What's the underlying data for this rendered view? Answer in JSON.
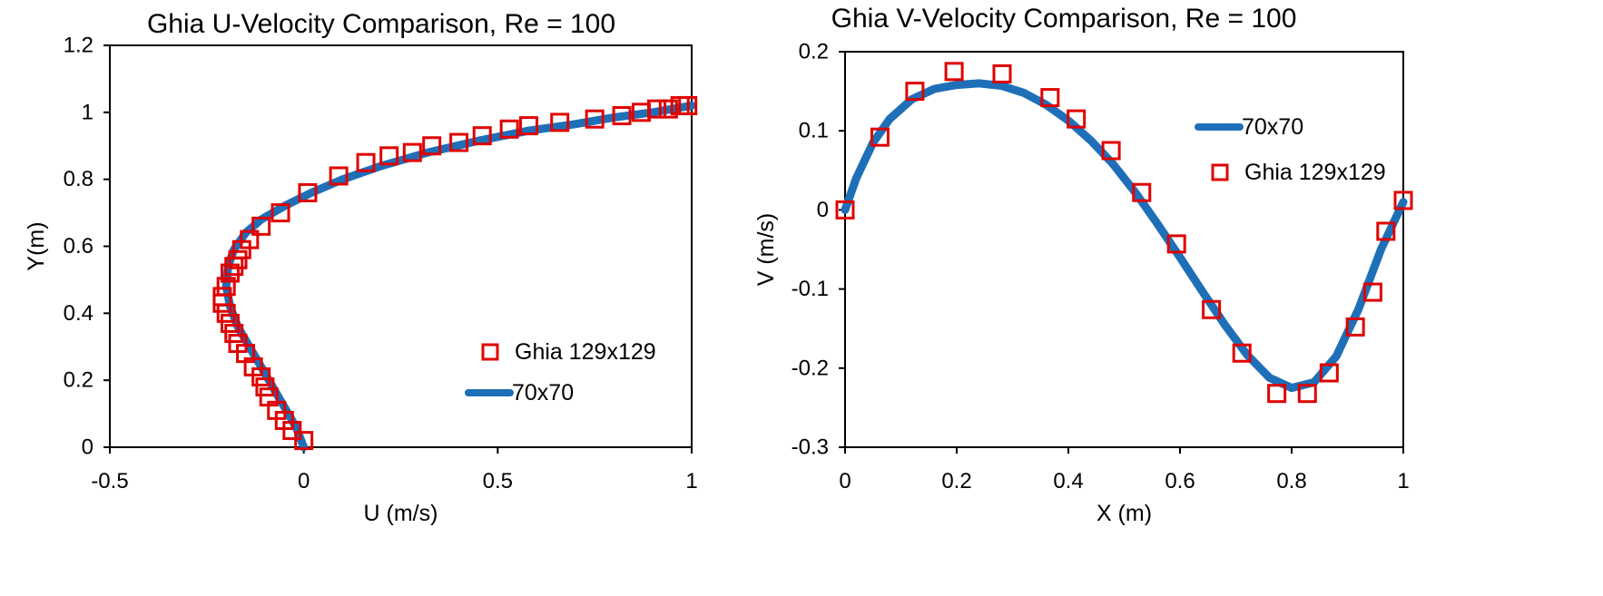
{
  "colors": {
    "simulation": "#1F6FB8",
    "ghia": "#E00000",
    "axis": "#000000"
  },
  "chart_data": [
    {
      "type": "line",
      "title": "Ghia U-Velocity Comparison, Re = 100",
      "xlabel": "U (m/s)",
      "ylabel": "Y(m)",
      "xlim": [
        -0.5,
        1
      ],
      "ylim": [
        0,
        1.2
      ],
      "xticks": [
        -0.5,
        0,
        0.5,
        1
      ],
      "xtick_labels": [
        "-0.5",
        "0",
        "0.5",
        "1"
      ],
      "yticks": [
        0,
        0.2,
        0.4,
        0.6,
        0.8,
        1,
        1.2
      ],
      "ytick_labels": [
        "0",
        "0.2",
        "0.4",
        "0.6",
        "0.8",
        "1",
        "1.2"
      ],
      "grid": false,
      "legend_position": "bottom-right",
      "legend_order": [
        "Ghia 129x129",
        "70x70"
      ],
      "series": [
        {
          "name": "70x70",
          "kind": "line",
          "x": [
            0.0,
            -0.02,
            -0.05,
            -0.08,
            -0.11,
            -0.14,
            -0.17,
            -0.19,
            -0.2,
            -0.195,
            -0.18,
            -0.15,
            -0.11,
            -0.05,
            0.02,
            0.1,
            0.2,
            0.32,
            0.45,
            0.58,
            0.7,
            0.8,
            0.9,
            1.0
          ],
          "y": [
            0.0,
            0.06,
            0.12,
            0.18,
            0.24,
            0.3,
            0.36,
            0.42,
            0.48,
            0.54,
            0.59,
            0.64,
            0.68,
            0.72,
            0.76,
            0.8,
            0.84,
            0.88,
            0.915,
            0.945,
            0.965,
            0.985,
            1.0,
            1.02
          ]
        },
        {
          "name": "Ghia 129x129",
          "kind": "markers",
          "x": [
            0.0,
            -0.03,
            -0.05,
            -0.07,
            -0.09,
            -0.1,
            -0.11,
            -0.13,
            -0.15,
            -0.17,
            -0.18,
            -0.19,
            -0.2,
            -0.21,
            -0.21,
            -0.2,
            -0.19,
            -0.18,
            -0.17,
            -0.16,
            -0.14,
            -0.11,
            -0.06,
            0.01,
            0.09,
            0.16,
            0.22,
            0.28,
            0.33,
            0.4,
            0.46,
            0.53,
            0.58,
            0.66,
            0.75,
            0.82,
            0.87,
            0.91,
            0.94,
            0.97,
            0.99
          ],
          "y": [
            0.02,
            0.05,
            0.08,
            0.11,
            0.15,
            0.18,
            0.21,
            0.24,
            0.28,
            0.31,
            0.34,
            0.37,
            0.4,
            0.43,
            0.45,
            0.48,
            0.52,
            0.54,
            0.56,
            0.59,
            0.62,
            0.66,
            0.7,
            0.76,
            0.81,
            0.85,
            0.87,
            0.88,
            0.9,
            0.91,
            0.93,
            0.95,
            0.96,
            0.97,
            0.98,
            0.99,
            1.0,
            1.01,
            1.01,
            1.02,
            1.02
          ]
        }
      ]
    },
    {
      "type": "line",
      "title": "Ghia V-Velocity Comparison, Re = 100",
      "xlabel": "X (m)",
      "ylabel": "V (m/s)",
      "xlim": [
        0,
        1
      ],
      "ylim": [
        -0.3,
        0.2
      ],
      "xticks": [
        0,
        0.2,
        0.4,
        0.6,
        0.8,
        1
      ],
      "xtick_labels": [
        "0",
        "0.2",
        "0.4",
        "0.6",
        "0.8",
        "1"
      ],
      "yticks": [
        -0.3,
        -0.2,
        -0.1,
        0,
        0.1,
        0.2
      ],
      "ytick_labels": [
        "-0.3",
        "-0.2",
        "-0.1",
        "0",
        "0.1",
        "0.2"
      ],
      "grid": false,
      "legend_position": "top-right",
      "legend_order": [
        "70x70",
        "Ghia 129x129"
      ],
      "series": [
        {
          "name": "70x70",
          "kind": "line",
          "x": [
            0.0,
            0.02,
            0.05,
            0.08,
            0.12,
            0.16,
            0.2,
            0.24,
            0.28,
            0.32,
            0.36,
            0.4,
            0.44,
            0.48,
            0.52,
            0.56,
            0.6,
            0.64,
            0.68,
            0.72,
            0.76,
            0.8,
            0.84,
            0.88,
            0.92,
            0.96,
            1.0
          ],
          "y": [
            0.0,
            0.04,
            0.085,
            0.115,
            0.14,
            0.153,
            0.158,
            0.16,
            0.157,
            0.148,
            0.133,
            0.113,
            0.088,
            0.058,
            0.022,
            -0.018,
            -0.06,
            -0.103,
            -0.145,
            -0.183,
            -0.212,
            -0.225,
            -0.218,
            -0.185,
            -0.125,
            -0.05,
            0.01
          ]
        },
        {
          "name": "Ghia 129x129",
          "kind": "markers",
          "x": [
            0.0,
            0.0625,
            0.125,
            0.1953,
            0.2813,
            0.3672,
            0.4141,
            0.4766,
            0.5313,
            0.5938,
            0.6563,
            0.7109,
            0.7734,
            0.8281,
            0.8672,
            0.9141,
            0.9453,
            0.9688,
            1.0
          ],
          "y": [
            0.0,
            0.092,
            0.15,
            0.175,
            0.172,
            0.142,
            0.115,
            0.075,
            0.022,
            -0.043,
            -0.126,
            -0.181,
            -0.232,
            -0.232,
            -0.206,
            -0.148,
            -0.104,
            -0.027,
            0.012
          ]
        }
      ]
    }
  ]
}
